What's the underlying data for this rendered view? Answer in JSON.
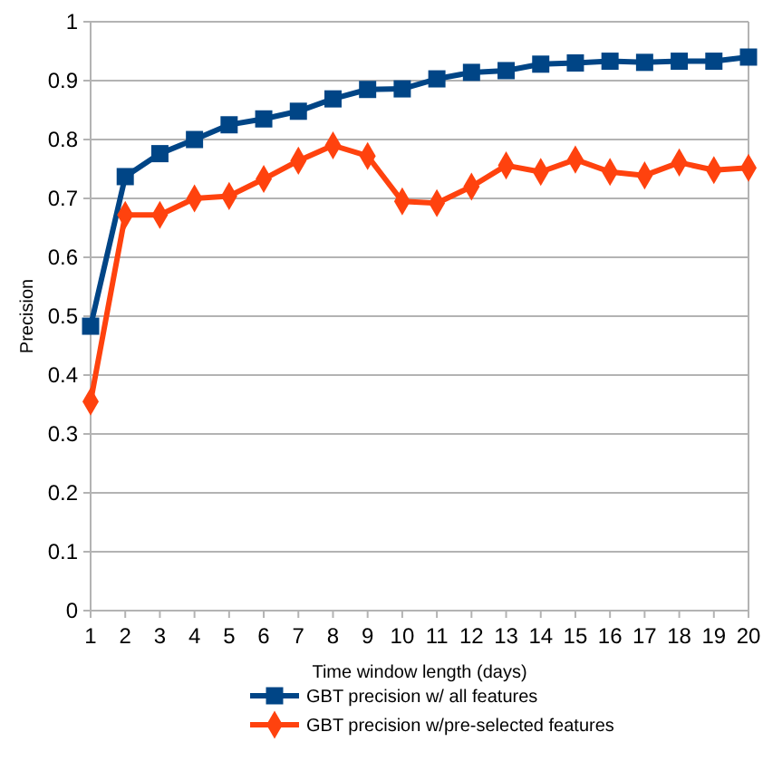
{
  "chart_data": {
    "type": "line",
    "xlabel": "Time window length (days)",
    "ylabel": "Precision",
    "x": [
      1,
      2,
      3,
      4,
      5,
      6,
      7,
      8,
      9,
      10,
      11,
      12,
      13,
      14,
      15,
      16,
      17,
      18,
      19,
      20
    ],
    "xlim": [
      1,
      20
    ],
    "xticks": [
      1,
      2,
      3,
      4,
      5,
      6,
      7,
      8,
      9,
      10,
      11,
      12,
      13,
      14,
      15,
      16,
      17,
      18,
      19,
      20
    ],
    "ylim": [
      0,
      1
    ],
    "yticks": [
      0,
      0.1,
      0.2,
      0.3,
      0.4,
      0.5,
      0.6,
      0.7,
      0.8,
      0.9,
      1
    ],
    "grid": "y",
    "legend": "bottom",
    "series": [
      {
        "name": "GBT precision w/ all features",
        "color": "#004586",
        "marker": "square",
        "values": [
          0.483,
          0.737,
          0.776,
          0.8,
          0.825,
          0.835,
          0.848,
          0.869,
          0.885,
          0.886,
          0.903,
          0.914,
          0.917,
          0.928,
          0.93,
          0.933,
          0.931,
          0.933,
          0.933,
          0.94
        ]
      },
      {
        "name": "GBT precision w/pre-selected features",
        "color": "#ff420e",
        "marker": "diamond",
        "values": [
          0.355,
          0.672,
          0.672,
          0.7,
          0.704,
          0.733,
          0.764,
          0.79,
          0.772,
          0.695,
          0.692,
          0.72,
          0.756,
          0.745,
          0.766,
          0.745,
          0.739,
          0.761,
          0.748,
          0.752
        ]
      }
    ]
  }
}
